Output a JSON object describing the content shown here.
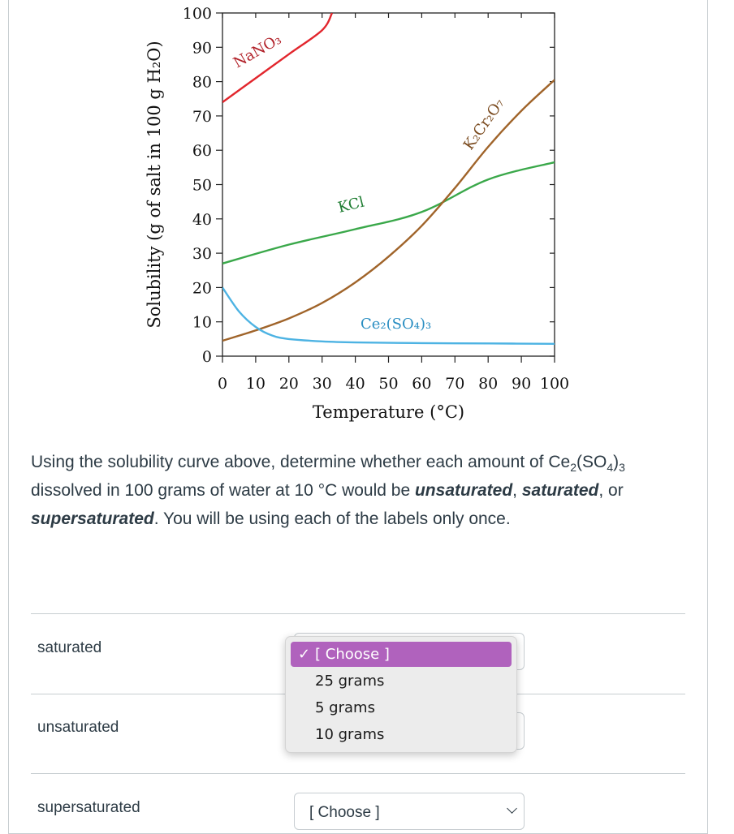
{
  "chart_data": {
    "type": "line",
    "xlabel": "Temperature (°C)",
    "ylabel": "Solubility (g of salt in 100 g H₂O)",
    "xlim": [
      0,
      100
    ],
    "ylim": [
      0,
      100
    ],
    "x_ticks": [
      "0",
      "10",
      "20",
      "30",
      "40",
      "50",
      "60",
      "70",
      "80",
      "90",
      "100"
    ],
    "y_ticks": [
      "0",
      "10",
      "20",
      "30",
      "40",
      "50",
      "60",
      "70",
      "80",
      "90",
      "100"
    ],
    "grid": false,
    "series": [
      {
        "name": "NaNO₃",
        "color": "#e2262d",
        "x": [
          0,
          10,
          20,
          30,
          33
        ],
        "y": [
          74,
          81,
          88,
          95,
          100
        ]
      },
      {
        "name": "KCl",
        "color": "#3aa84a",
        "x": [
          0,
          20,
          40,
          60,
          80,
          100
        ],
        "y": [
          27,
          32.5,
          37,
          42,
          51.5,
          56.5
        ]
      },
      {
        "name": "K₂Cr₂O₇",
        "color": "#a0642a",
        "x": [
          0,
          10,
          20,
          30,
          40,
          50,
          60,
          70,
          80,
          90,
          100
        ],
        "y": [
          4.5,
          7.5,
          11,
          15.5,
          21.5,
          29,
          38,
          49,
          61,
          71.5,
          80.5
        ]
      },
      {
        "name": "Ce₂(SO₄)₃",
        "color": "#4db3e3",
        "x": [
          0,
          5,
          10,
          15,
          20,
          30,
          40,
          60,
          80,
          100
        ],
        "y": [
          20,
          13,
          8.5,
          6,
          5,
          4.3,
          4,
          3.8,
          3.7,
          3.6
        ]
      }
    ]
  },
  "question": {
    "part1": "Using the solubility curve above, determine whether each amount of Ce",
    "sub1": "2",
    "part2": "(SO",
    "sub2": "4",
    "part3": ")",
    "sub3": "3",
    "part4": " dissolved in 100 grams of water at 10 °C would be ",
    "bold1": "unsaturated",
    "part5": ", ",
    "bold2": "saturated",
    "part6": ", or ",
    "bold3": "supersaturated",
    "part7": ". You will be using each of the labels only once."
  },
  "rows": [
    {
      "label": "saturated",
      "value": "[ Choose ]"
    },
    {
      "label": "unsaturated",
      "value": "[ Choose ]"
    },
    {
      "label": "supersaturated",
      "value": "[ Choose ]"
    }
  ],
  "dropdown": {
    "check": "✓",
    "options": [
      "[ Choose ]",
      "25 grams",
      "5 grams",
      "10 grams"
    ],
    "selected_index": 0
  }
}
